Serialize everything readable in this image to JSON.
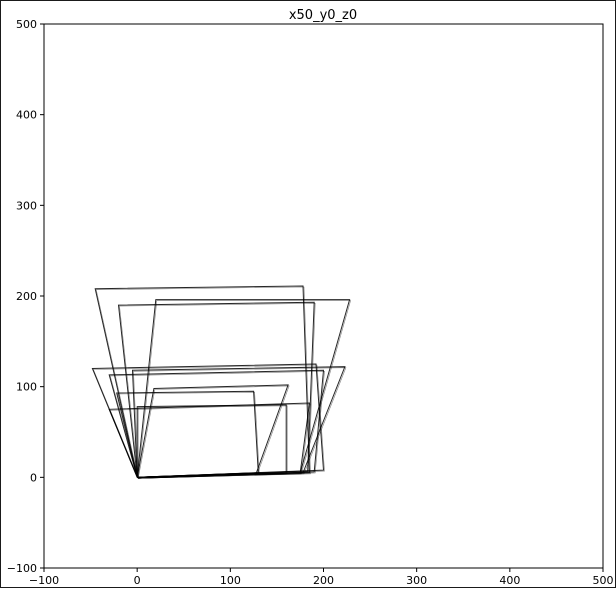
{
  "chart_data": {
    "type": "line",
    "title": "x50_y0_z0",
    "xlabel": "",
    "ylabel": "",
    "xlim": [
      -100,
      500
    ],
    "ylim": [
      -100,
      500
    ],
    "xticks": [
      -100,
      0,
      100,
      200,
      300,
      400,
      500
    ],
    "yticks": [
      -100,
      0,
      100,
      200,
      300,
      400,
      500
    ],
    "grid": false,
    "line_color": "#000000",
    "series": [
      {
        "values": [
          [
            0,
            0
          ],
          [
            -45,
            208
          ],
          [
            178,
            211
          ],
          [
            185,
            5
          ],
          [
            0,
            0
          ]
        ]
      },
      {
        "values": [
          [
            0,
            0
          ],
          [
            -20,
            190
          ],
          [
            190,
            193
          ],
          [
            183,
            7
          ],
          [
            0,
            0
          ]
        ]
      },
      {
        "values": [
          [
            0,
            0
          ],
          [
            20,
            196
          ],
          [
            228,
            196
          ],
          [
            175,
            5
          ],
          [
            0,
            0
          ]
        ]
      },
      {
        "values": [
          [
            0,
            0
          ],
          [
            -48,
            120
          ],
          [
            192,
            125
          ],
          [
            200,
            8
          ],
          [
            0,
            0
          ]
        ]
      },
      {
        "values": [
          [
            0,
            0
          ],
          [
            -30,
            113
          ],
          [
            200,
            118
          ],
          [
            190,
            6
          ],
          [
            0,
            0
          ]
        ]
      },
      {
        "values": [
          [
            0,
            0
          ],
          [
            -5,
            118
          ],
          [
            223,
            122
          ],
          [
            178,
            5
          ],
          [
            0,
            0
          ]
        ]
      },
      {
        "values": [
          [
            0,
            0
          ],
          [
            -22,
            93
          ],
          [
            125,
            95
          ],
          [
            130,
            5
          ],
          [
            0,
            0
          ]
        ]
      },
      {
        "values": [
          [
            0,
            0
          ],
          [
            18,
            98
          ],
          [
            162,
            102
          ],
          [
            128,
            5
          ],
          [
            0,
            0
          ]
        ]
      },
      {
        "values": [
          [
            0,
            0
          ],
          [
            -30,
            75
          ],
          [
            185,
            82
          ],
          [
            175,
            5
          ],
          [
            0,
            0
          ]
        ]
      },
      {
        "values": [
          [
            0,
            0
          ],
          [
            0,
            78
          ],
          [
            160,
            80
          ],
          [
            160,
            5
          ],
          [
            0,
            0
          ]
        ]
      }
    ]
  }
}
